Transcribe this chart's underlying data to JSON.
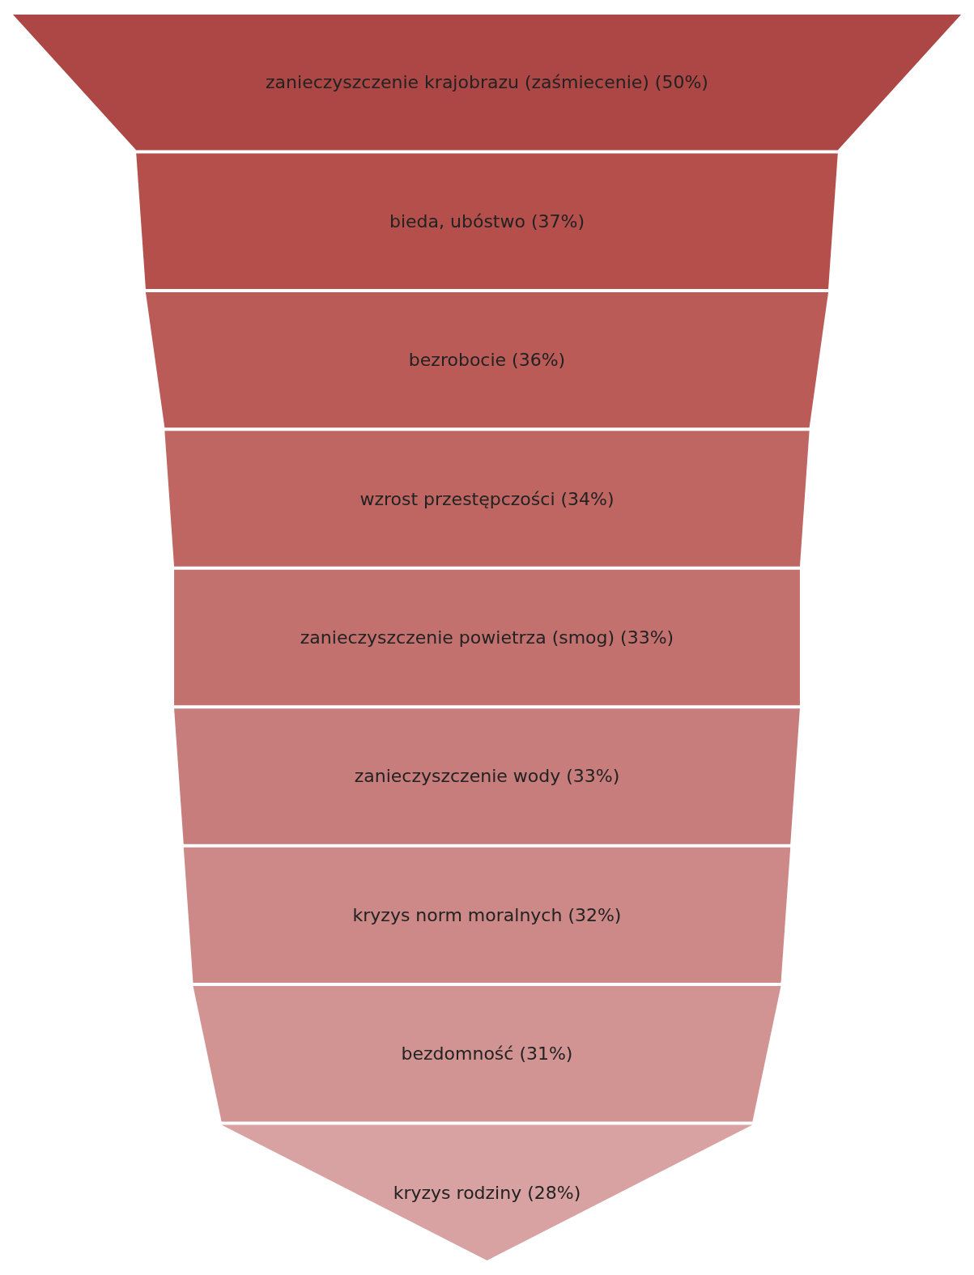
{
  "chart_data": {
    "type": "other",
    "categories": [
      "zanieczyszczenie krajobrazu (zaśmiecenie)",
      "bieda, ubóstwo",
      "bezrobocie",
      "wzrost przestępczości",
      "zanieczyszczenie powietrza (smog)",
      "zanieczyszczenie wody",
      "kryzys norm moralnych",
      "bezdomność",
      "kryzys rodziny"
    ],
    "values": [
      50,
      37,
      36,
      34,
      33,
      33,
      32,
      31,
      28
    ],
    "value_labels": [
      "(50%)",
      "(37%)",
      "(36%)",
      "(34%)",
      "(33%)",
      "(33%)",
      "(32%)",
      "(31%)",
      "(28%)"
    ],
    "colors": [
      "#ad4745",
      "#b54f4c",
      "#ba5b57",
      "#bf6663",
      "#c3716e",
      "#c77d7b",
      "#cc8987",
      "#d19493",
      "#d7a2a1"
    ]
  }
}
